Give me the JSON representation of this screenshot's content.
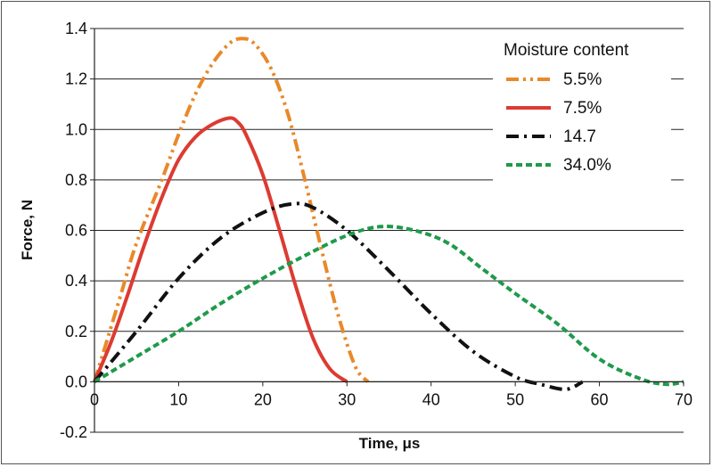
{
  "chart_data": {
    "type": "line",
    "xlabel": "Time, μs",
    "ylabel": "Force, N",
    "xlim": [
      0,
      70
    ],
    "ylim": [
      -0.2,
      1.4
    ],
    "xticks": [
      "0",
      "10",
      "20",
      "30",
      "40",
      "50",
      "60",
      "70"
    ],
    "yticks": [
      "-0.2",
      "0.0",
      "0.2",
      "0.4",
      "0.6",
      "0.8",
      "1.0",
      "1.2",
      "1.4"
    ],
    "grid": "horizontal",
    "legend": {
      "title": "Moisture content",
      "placement": "top-right"
    },
    "series": [
      {
        "name": "5.5%",
        "color": "#e8892a",
        "dash": "dash-dot-dot",
        "x": [
          0,
          3,
          5,
          8,
          10,
          12,
          14,
          16,
          17.5,
          19,
          21,
          23,
          25,
          27,
          29,
          31,
          32.5
        ],
        "y": [
          0.0,
          0.33,
          0.55,
          0.8,
          0.98,
          1.14,
          1.26,
          1.34,
          1.36,
          1.34,
          1.24,
          1.06,
          0.8,
          0.52,
          0.26,
          0.06,
          0.0
        ]
      },
      {
        "name": "7.5%",
        "color": "#dc3b32",
        "dash": "solid",
        "x": [
          0,
          2,
          4,
          6,
          8,
          10,
          12,
          14,
          16,
          17,
          18,
          20,
          22,
          24,
          26,
          28,
          30
        ],
        "y": [
          0.0,
          0.16,
          0.35,
          0.55,
          0.73,
          0.88,
          0.97,
          1.02,
          1.045,
          1.03,
          0.98,
          0.82,
          0.6,
          0.37,
          0.17,
          0.05,
          0.0
        ]
      },
      {
        "name": "14.7",
        "color": "#111111",
        "dash": "dash-dot",
        "x": [
          0,
          5,
          10,
          15,
          20,
          23.5,
          26,
          30,
          35,
          40,
          45,
          50,
          53,
          56,
          58
        ],
        "y": [
          0.0,
          0.2,
          0.41,
          0.57,
          0.67,
          0.705,
          0.69,
          0.6,
          0.44,
          0.27,
          0.12,
          0.02,
          -0.01,
          -0.03,
          0.0
        ]
      },
      {
        "name": "34.0%",
        "color": "#1f9a4b",
        "dash": "dashed",
        "x": [
          0,
          5,
          10,
          15,
          20,
          25,
          30,
          34,
          38,
          42,
          46,
          50,
          55,
          60,
          65,
          68,
          70
        ],
        "y": [
          0.0,
          0.1,
          0.2,
          0.31,
          0.41,
          0.5,
          0.58,
          0.615,
          0.6,
          0.55,
          0.45,
          0.35,
          0.23,
          0.09,
          0.01,
          -0.01,
          0.0
        ]
      }
    ]
  }
}
